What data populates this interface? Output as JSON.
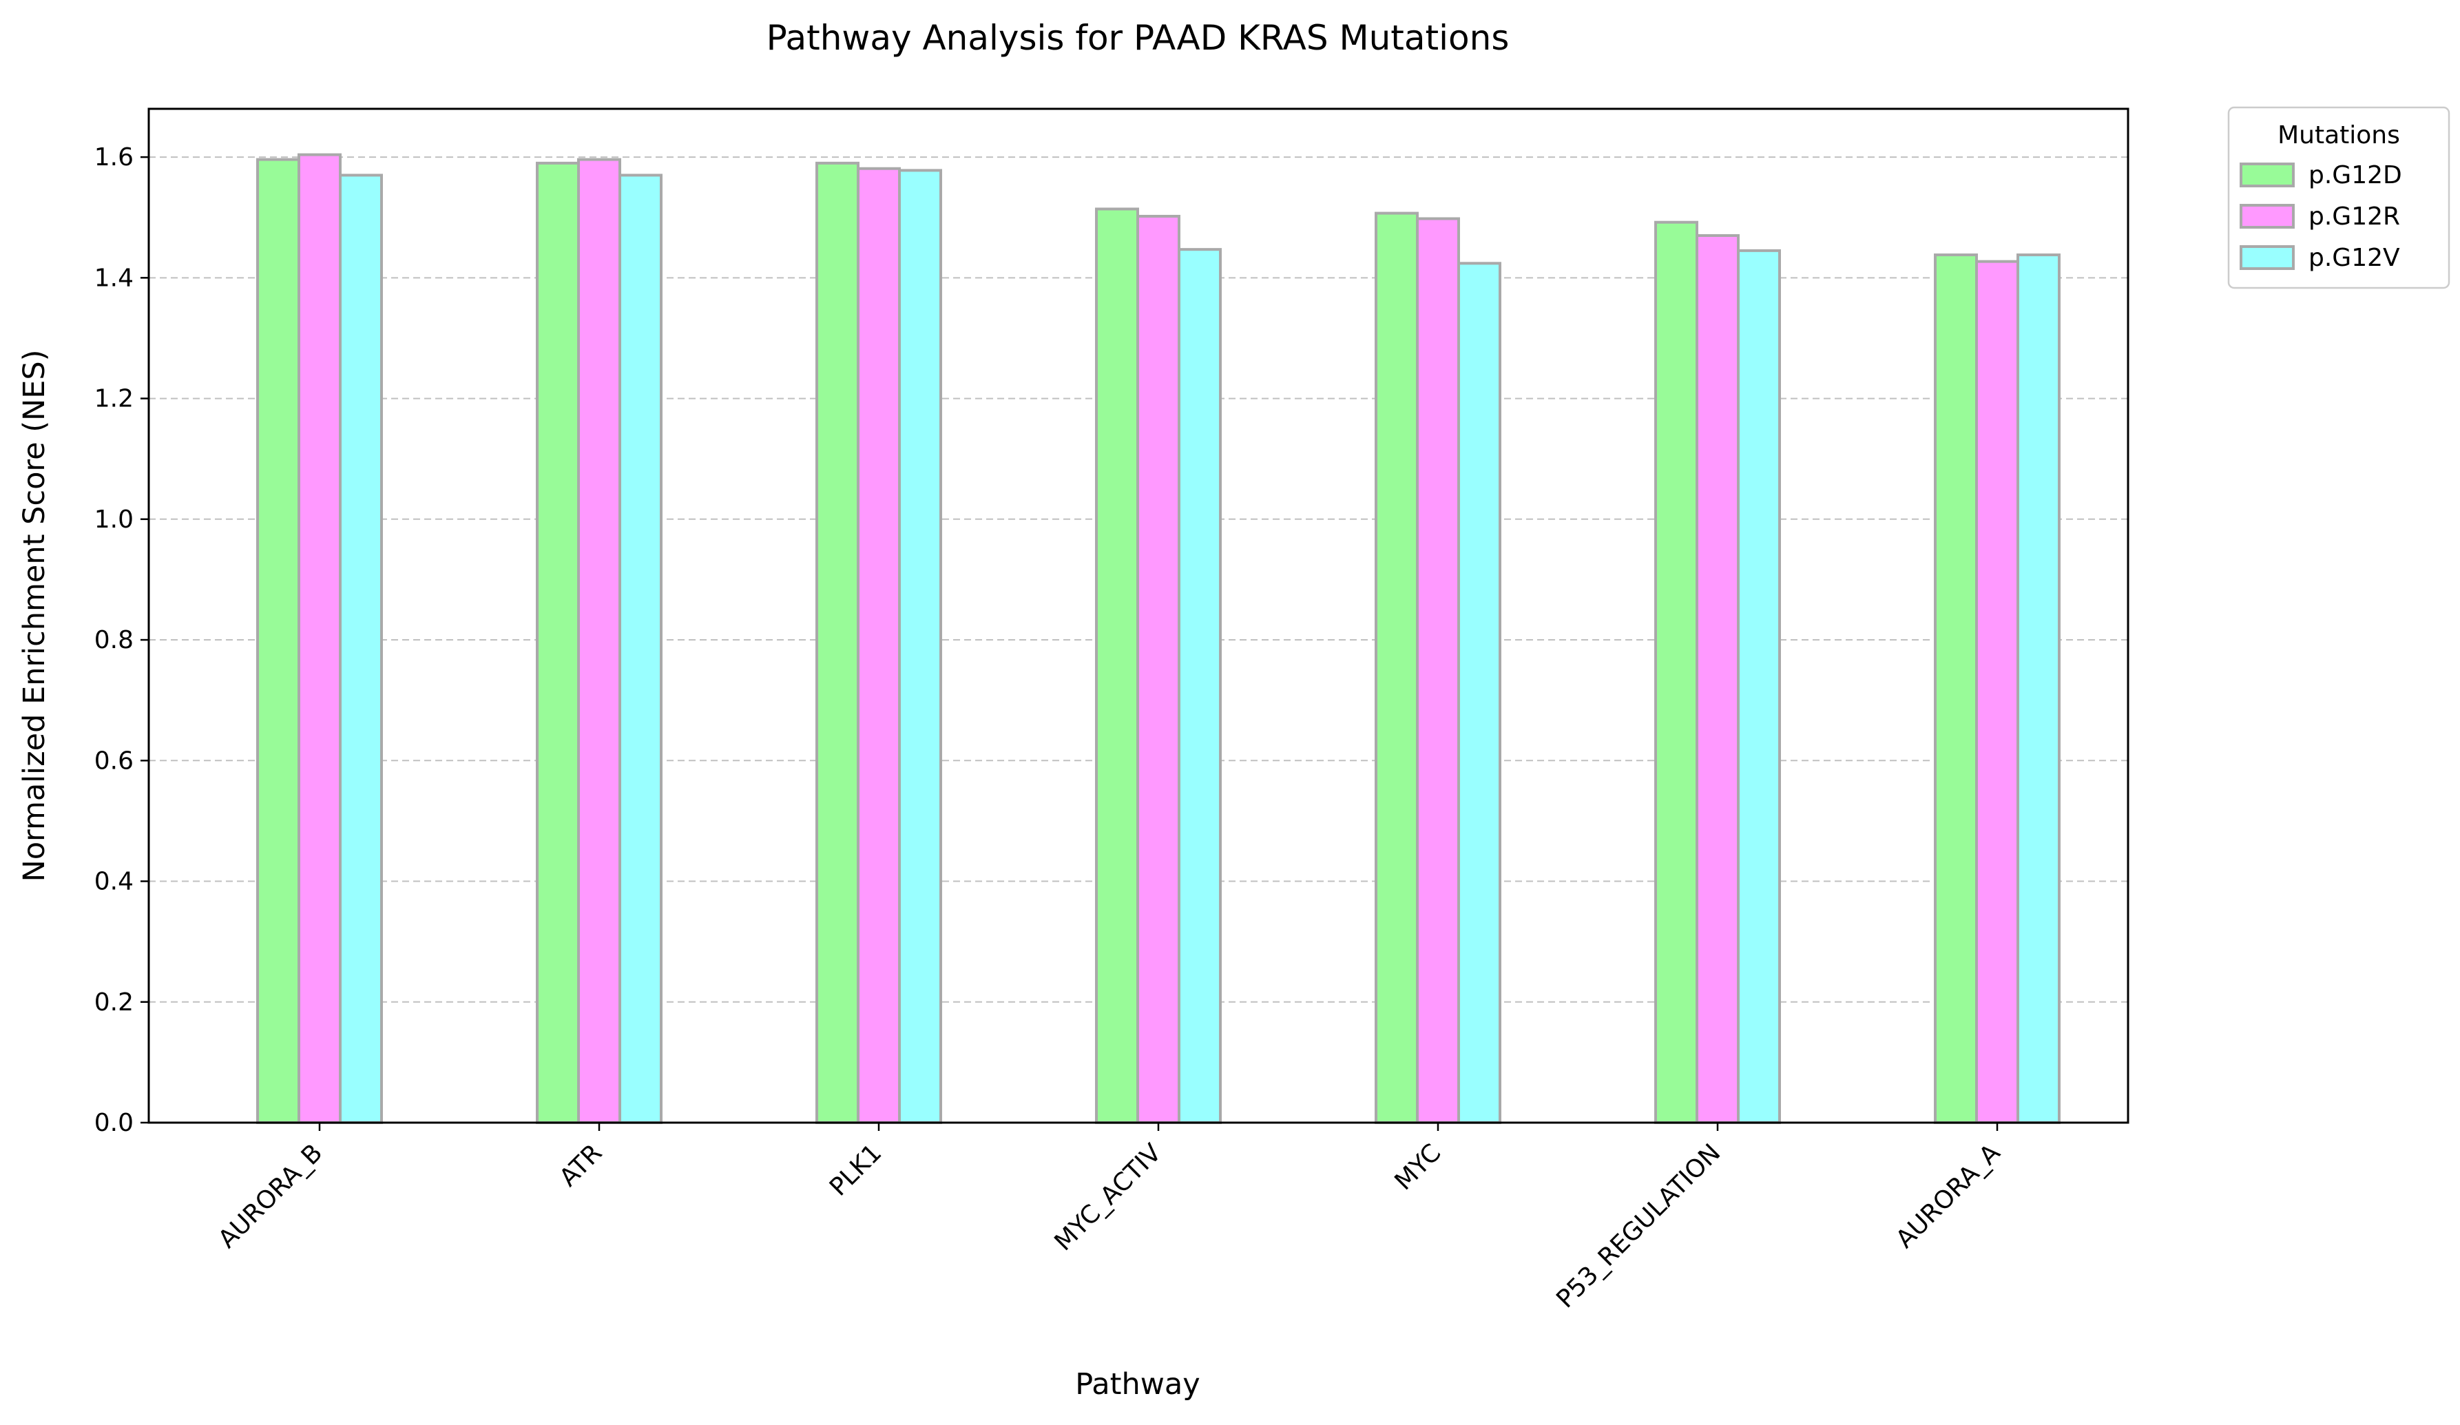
{
  "chart_data": {
    "type": "bar",
    "title": "Pathway Analysis for PAAD KRAS Mutations",
    "xlabel": "Pathway",
    "ylabel": "Normalized Enrichment Score (NES)",
    "categories": [
      "AURORA_B",
      "ATR",
      "PLK1",
      "MYC_ACTIV",
      "MYC",
      "P53_REGULATION",
      "AURORA_A"
    ],
    "series": [
      {
        "name": "p.G12D",
        "color": "#98FB98",
        "values": [
          1.596,
          1.59,
          1.59,
          1.514,
          1.507,
          1.492,
          1.438
        ]
      },
      {
        "name": "p.G12R",
        "color": "#FF99FF",
        "values": [
          1.604,
          1.596,
          1.581,
          1.502,
          1.498,
          1.47,
          1.427
        ]
      },
      {
        "name": "p.G12V",
        "color": "#99FFFF",
        "values": [
          1.57,
          1.57,
          1.578,
          1.447,
          1.424,
          1.445,
          1.438
        ]
      }
    ],
    "ylim": [
      0,
      1.68
    ],
    "yticks": [
      "0.0",
      "0.2",
      "0.4",
      "0.6",
      "0.8",
      "1.0",
      "1.2",
      "1.4",
      "1.6"
    ],
    "grid": "y-dashed",
    "legend": {
      "title": "Mutations",
      "placement": "outside-top-right"
    },
    "bar_edge_color": "#A9A9A9"
  }
}
